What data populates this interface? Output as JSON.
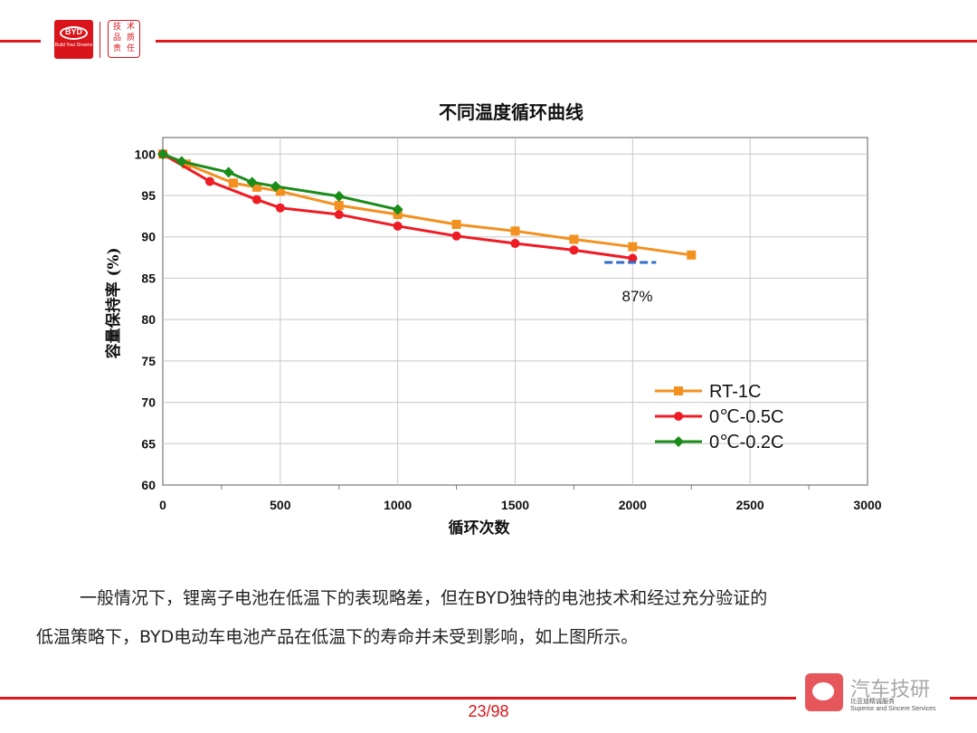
{
  "header": {
    "logo_text": "BYD",
    "logo_slogan": "Build Your Dreams",
    "seal_chars": [
      "技",
      "术",
      "品",
      "质",
      "责",
      "任"
    ]
  },
  "colors": {
    "accent": "#e0161d",
    "rt": "#f39120",
    "c05": "#ee1c24",
    "c02": "#1a8c1a",
    "annot": "#2f6ec7"
  },
  "chart_data": {
    "type": "line",
    "title": "不同温度循环曲线",
    "xlabel": "循环次数",
    "ylabel": "容量保持率 (%)",
    "xlim": [
      0,
      3000
    ],
    "ylim": [
      60,
      102
    ],
    "xticks": [
      0,
      500,
      1000,
      1500,
      2000,
      2500,
      3000
    ],
    "yticks": [
      60,
      65,
      70,
      75,
      80,
      85,
      90,
      95,
      100
    ],
    "grid": true,
    "legend_position": "lower-right",
    "series": [
      {
        "name": "RT-1C",
        "color": "#f39120",
        "marker": "square",
        "x": [
          0,
          100,
          300,
          400,
          500,
          750,
          1000,
          1250,
          1500,
          1750,
          2000,
          2250
        ],
        "y": [
          100,
          98.8,
          96.5,
          96.0,
          95.5,
          93.8,
          92.7,
          91.5,
          90.7,
          89.7,
          88.8,
          87.8
        ]
      },
      {
        "name": "0℃-0.5C",
        "color": "#ee1c24",
        "marker": "circle",
        "x": [
          0,
          200,
          400,
          500,
          750,
          1000,
          1250,
          1500,
          1750,
          2000
        ],
        "y": [
          100,
          96.7,
          94.5,
          93.5,
          92.7,
          91.3,
          90.1,
          89.2,
          88.4,
          87.4
        ]
      },
      {
        "name": "0℃-0.2C",
        "color": "#1a8c1a",
        "marker": "diamond",
        "x": [
          0,
          80,
          280,
          380,
          480,
          750,
          1000
        ],
        "y": [
          100,
          99.1,
          97.8,
          96.6,
          96.1,
          94.9,
          93.3
        ]
      }
    ],
    "annotation": {
      "text": "87%",
      "x_range": [
        1880,
        2100
      ],
      "y": 86.9
    }
  },
  "body": {
    "para1": "一般情况下，锂离子电池在低温下的表现略差，但在BYD独特的电池技术和经过充分验证的",
    "para2": "低温策略下，BYD电动车电池产品在低温下的寿命并未受到影响，如上图所示。"
  },
  "footer": {
    "page": "23/98",
    "watermark": "汽车技研",
    "watermark_sub": "比亚迪精诚服务",
    "watermark_sub_en": "Superior and Sincere Services"
  }
}
